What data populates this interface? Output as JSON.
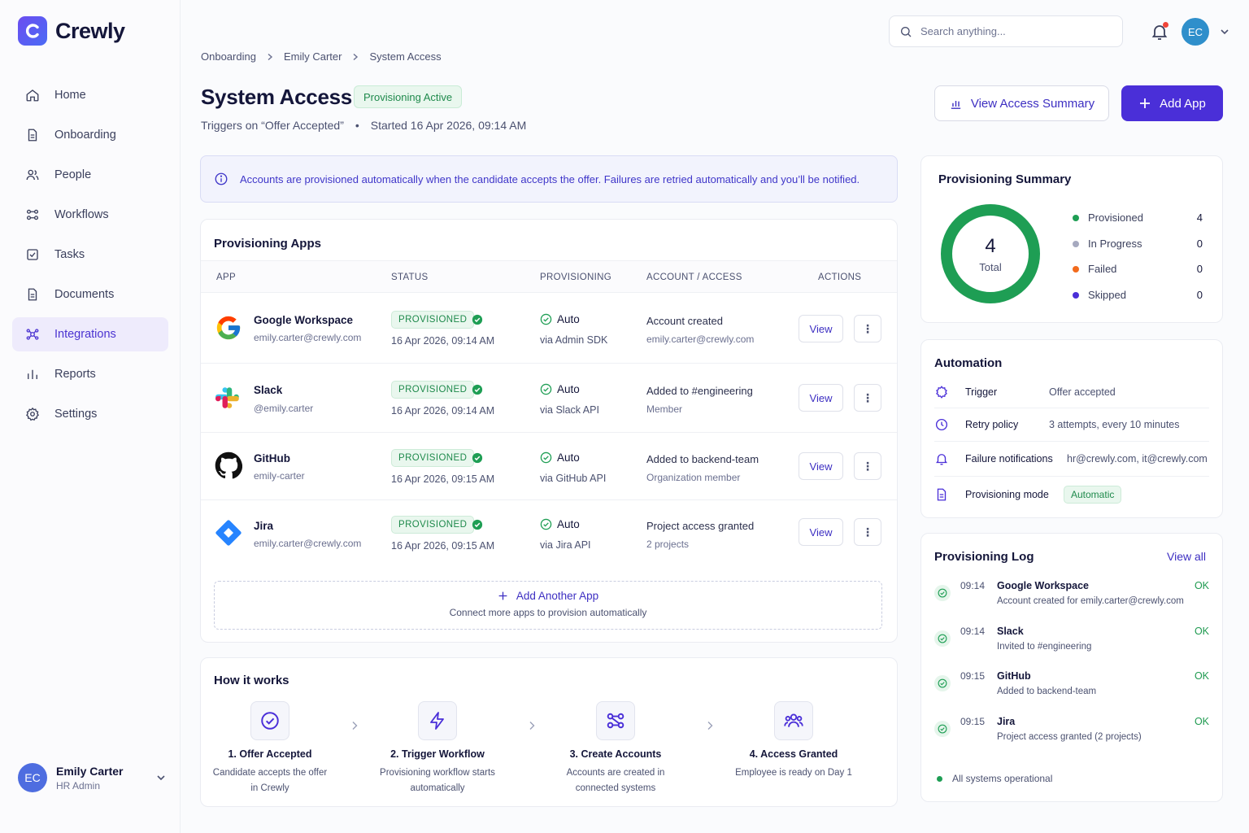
{
  "brand": {
    "name": "Crewly",
    "accent": "#4a2fd8"
  },
  "sidebar": {
    "items": [
      {
        "label": "Home",
        "icon": "home-icon"
      },
      {
        "label": "Onboarding",
        "icon": "document-icon"
      },
      {
        "label": "People",
        "icon": "people-icon"
      },
      {
        "label": "Workflows",
        "icon": "workflow-icon"
      },
      {
        "label": "Tasks",
        "icon": "checkbox-icon"
      },
      {
        "label": "Documents",
        "icon": "document-icon"
      },
      {
        "label": "Integrations",
        "icon": "integrations-icon",
        "active": true
      },
      {
        "label": "Reports",
        "icon": "bar-chart-icon"
      },
      {
        "label": "Settings",
        "icon": "gear-icon"
      }
    ],
    "user": {
      "initials": "EC",
      "name": "Emily Carter",
      "role": "HR Admin"
    }
  },
  "header": {
    "search_placeholder": "Search anything...",
    "avatar_initials": "EC"
  },
  "breadcrumb": [
    "Onboarding",
    "Emily Carter",
    "System Access"
  ],
  "page": {
    "title": "System Access",
    "status_badge": "Provisioning Active",
    "trigger_text": "Triggers on “Offer Accepted”",
    "bullet": "•",
    "started_text": "Started 16 Apr 2026, 09:14 AM",
    "view_summary_label": "View Access Summary",
    "add_app_label": "Add App"
  },
  "info_banner": "Accounts are provisioned automatically when the candidate accepts the offer. Failures are retried automatically and you’ll be notified.",
  "apps_table": {
    "title": "Provisioning Apps",
    "columns": {
      "app": "APP",
      "status": "STATUS",
      "provisioning": "PROVISIONING",
      "account": "ACCOUNT / ACCESS",
      "actions": "ACTIONS"
    },
    "rows": [
      {
        "name": "Google Workspace",
        "sub": "emily.carter@crewly.com",
        "status": "PROVISIONED",
        "date": "16 Apr 2026, 09:14 AM",
        "mode": "Auto",
        "via": "via Admin SDK",
        "account": "Account created",
        "account_sub": "emily.carter@crewly.com",
        "view_label": "View",
        "more": "⋮",
        "icon": "google-icon"
      },
      {
        "name": "Slack",
        "sub": "@emily.carter",
        "status": "PROVISIONED",
        "date": "16 Apr 2026, 09:14 AM",
        "mode": "Auto",
        "via": "via Slack API",
        "account": "Added to #engineering",
        "account_sub": "Member",
        "view_label": "View",
        "more": "⋮",
        "icon": "slack-icon"
      },
      {
        "name": "GitHub",
        "sub": "emily-carter",
        "status": "PROVISIONED",
        "date": "16 Apr 2026, 09:15 AM",
        "mode": "Auto",
        "via": "via GitHub API",
        "account": "Added to backend-team",
        "account_sub": "Organization member",
        "view_label": "View",
        "more": "⋮",
        "icon": "github-icon"
      },
      {
        "name": "Jira",
        "sub": "emily.carter@crewly.com",
        "status": "PROVISIONED",
        "date": "16 Apr 2026, 09:15 AM",
        "mode": "Auto",
        "via": "via Jira API",
        "account": "Project access granted",
        "account_sub": "2 projects",
        "view_label": "View",
        "more": "⋮",
        "icon": "jira-icon"
      }
    ],
    "add_another": {
      "label": "Add Another App",
      "sub": "Connect more apps to provision automatically"
    }
  },
  "how_it_works": {
    "title": "How it works",
    "steps": [
      {
        "title": "1. Offer Accepted",
        "desc": "Candidate accepts the offer in Crewly",
        "icon": "check-circle-icon"
      },
      {
        "title": "2. Trigger Workflow",
        "desc": "Provisioning workflow starts automatically",
        "icon": "lightning-icon"
      },
      {
        "title": "3. Create Accounts",
        "desc": "Accounts are created in connected systems",
        "icon": "workflow-icon"
      },
      {
        "title": "4. Access Granted",
        "desc": "Employee is ready on Day 1",
        "icon": "team-icon"
      }
    ]
  },
  "summary": {
    "title": "Provisioning Summary",
    "total": "4",
    "total_label": "Total",
    "legend": [
      {
        "label": "Provisioned",
        "count": "4",
        "color": "#1e9e54"
      },
      {
        "label": "In Progress",
        "count": "0",
        "color": "#a6a9bf"
      },
      {
        "label": "Failed",
        "count": "0",
        "color": "#f26b1d"
      },
      {
        "label": "Skipped",
        "count": "0",
        "color": "#4a2fd8"
      }
    ]
  },
  "automation": {
    "title": "Automation",
    "rows": [
      {
        "label": "Trigger",
        "value": "Offer accepted",
        "icon": "trigger-icon"
      },
      {
        "label": "Retry policy",
        "value": "3 attempts, every 10 minutes",
        "icon": "clock-icon"
      },
      {
        "label": "Failure notifications",
        "value": "hr@crewly.com, it@crewly.com",
        "icon": "bell-icon"
      },
      {
        "label": "Provisioning mode",
        "value": "Automatic",
        "icon": "document-icon"
      }
    ]
  },
  "log": {
    "title": "Provisioning Log",
    "view_all": "View all",
    "items": [
      {
        "time": "09:14",
        "app": "Google Workspace",
        "desc": "Account created for emily.carter@crewly.com",
        "status": "OK"
      },
      {
        "time": "09:14",
        "app": "Slack",
        "desc": "Invited to #engineering",
        "status": "OK"
      },
      {
        "time": "09:15",
        "app": "GitHub",
        "desc": "Added to backend-team",
        "status": "OK"
      },
      {
        "time": "09:15",
        "app": "Jira",
        "desc": "Project access granted (2 projects)",
        "status": "OK"
      }
    ],
    "footer": "All systems operational"
  }
}
